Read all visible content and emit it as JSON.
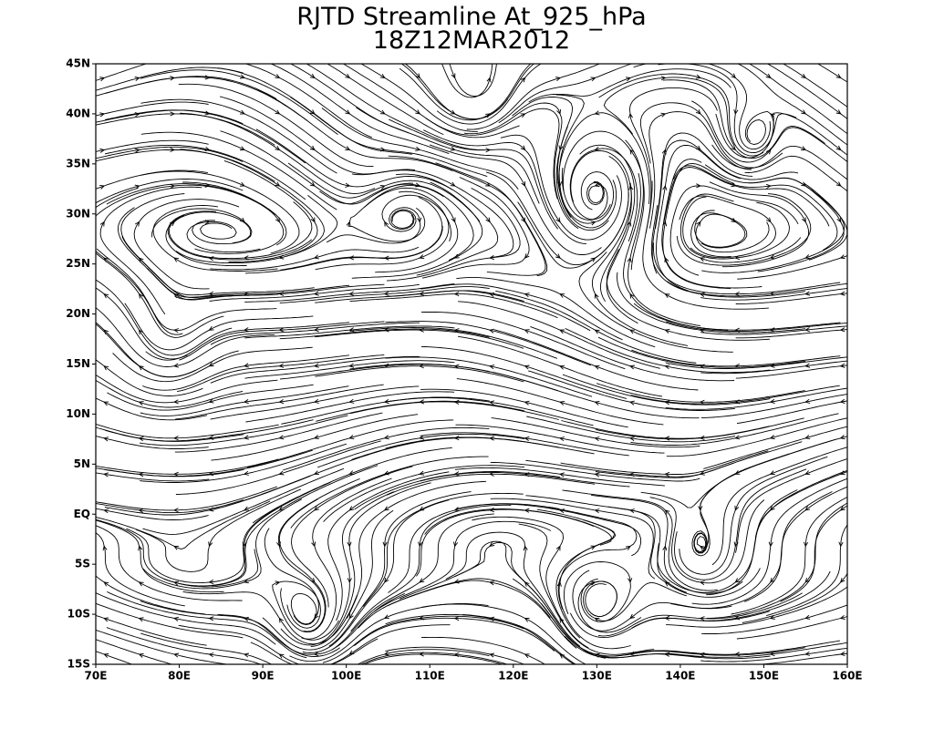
{
  "map": {
    "title": [
      "RJTD Streamline At_925_hPa",
      "18Z12MAR2012"
    ],
    "xlim": [
      70,
      160
    ],
    "ylim": [
      -15,
      45
    ],
    "xticks": [
      {
        "value": 70,
        "label": "70E"
      },
      {
        "value": 80,
        "label": "80E"
      },
      {
        "value": 90,
        "label": "90E"
      },
      {
        "value": 100,
        "label": "100E"
      },
      {
        "value": 110,
        "label": "110E"
      },
      {
        "value": 120,
        "label": "120E"
      },
      {
        "value": 130,
        "label": "130E"
      },
      {
        "value": 140,
        "label": "140E"
      },
      {
        "value": 150,
        "label": "150E"
      },
      {
        "value": 160,
        "label": "160E"
      }
    ],
    "yticks": [
      {
        "value": -15,
        "label": "15S"
      },
      {
        "value": -10,
        "label": "10S"
      },
      {
        "value": -5,
        "label": "5S"
      },
      {
        "value": 0,
        "label": "EQ"
      },
      {
        "value": 5,
        "label": "5N"
      },
      {
        "value": 10,
        "label": "10N"
      },
      {
        "value": 15,
        "label": "15N"
      },
      {
        "value": 20,
        "label": "20N"
      },
      {
        "value": 25,
        "label": "25N"
      },
      {
        "value": 30,
        "label": "30N"
      },
      {
        "value": 35,
        "label": "35N"
      },
      {
        "value": 40,
        "label": "40N"
      },
      {
        "value": 45,
        "label": "45N"
      }
    ]
  }
}
